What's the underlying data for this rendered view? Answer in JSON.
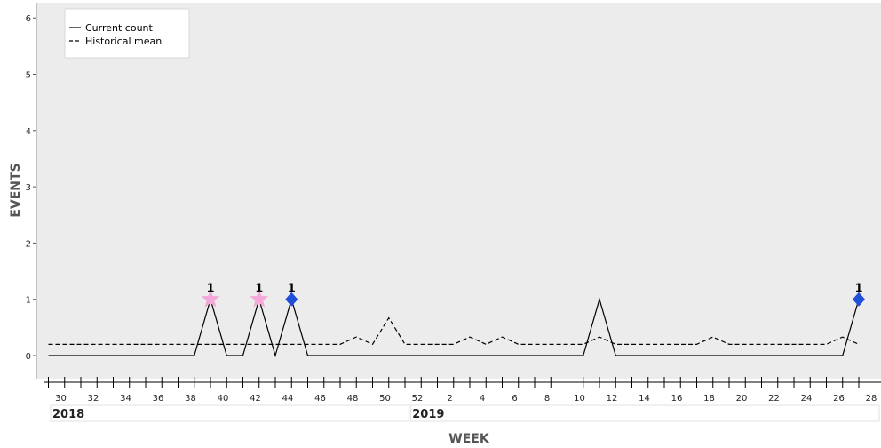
{
  "chart_data": {
    "type": "line",
    "xlabel": "WEEK",
    "ylabel": "EVENTS",
    "ylim": [
      0,
      6
    ],
    "yticks": [
      "0",
      "1",
      "2",
      "3",
      "4",
      "5",
      "6"
    ],
    "grid": false,
    "legend_position": "top-left",
    "colors": {
      "background": "#ececec",
      "line": "#000000",
      "star_marker": "#f4a8d9",
      "diamond_marker": "#1f4fd6"
    },
    "x": [
      "2018-W30",
      "2018-W31",
      "2018-W32",
      "2018-W33",
      "2018-W34",
      "2018-W35",
      "2018-W36",
      "2018-W37",
      "2018-W38",
      "2018-W39",
      "2018-W40",
      "2018-W41",
      "2018-W42",
      "2018-W43",
      "2018-W44",
      "2018-W45",
      "2018-W46",
      "2018-W47",
      "2018-W48",
      "2018-W49",
      "2018-W50",
      "2018-W51",
      "2018-W52",
      "2019-W01",
      "2019-W02",
      "2019-W03",
      "2019-W04",
      "2019-W05",
      "2019-W06",
      "2019-W07",
      "2019-W08",
      "2019-W09",
      "2019-W10",
      "2019-W11",
      "2019-W12",
      "2019-W13",
      "2019-W14",
      "2019-W15",
      "2019-W16",
      "2019-W17",
      "2019-W18",
      "2019-W19",
      "2019-W20",
      "2019-W21",
      "2019-W22",
      "2019-W23",
      "2019-W24",
      "2019-W25",
      "2019-W26",
      "2019-W27",
      "2019-W28"
    ],
    "xticks": [
      {
        "week": "2018-W30",
        "label": "30"
      },
      {
        "week": "2018-W32",
        "label": "32"
      },
      {
        "week": "2018-W34",
        "label": "34"
      },
      {
        "week": "2018-W36",
        "label": "36"
      },
      {
        "week": "2018-W38",
        "label": "38"
      },
      {
        "week": "2018-W40",
        "label": "40"
      },
      {
        "week": "2018-W42",
        "label": "42"
      },
      {
        "week": "2018-W44",
        "label": "44"
      },
      {
        "week": "2018-W46",
        "label": "46"
      },
      {
        "week": "2018-W48",
        "label": "48"
      },
      {
        "week": "2018-W50",
        "label": "50"
      },
      {
        "week": "2018-W52",
        "label": "52"
      },
      {
        "week": "2019-W02",
        "label": "2"
      },
      {
        "week": "2019-W04",
        "label": "4"
      },
      {
        "week": "2019-W06",
        "label": "6"
      },
      {
        "week": "2019-W08",
        "label": "8"
      },
      {
        "week": "2019-W10",
        "label": "10"
      },
      {
        "week": "2019-W12",
        "label": "12"
      },
      {
        "week": "2019-W14",
        "label": "14"
      },
      {
        "week": "2019-W16",
        "label": "16"
      },
      {
        "week": "2019-W18",
        "label": "18"
      },
      {
        "week": "2019-W20",
        "label": "20"
      },
      {
        "week": "2019-W22",
        "label": "22"
      },
      {
        "week": "2019-W24",
        "label": "24"
      },
      {
        "week": "2019-W26",
        "label": "26"
      },
      {
        "week": "2019-W28",
        "label": "28"
      }
    ],
    "years": [
      {
        "label": "2018",
        "start_week": "2018-W30"
      },
      {
        "label": "2019",
        "start_week": "2019-W01"
      }
    ],
    "series": [
      {
        "name": "Current count",
        "style": "solid",
        "values": [
          0,
          0,
          0,
          0,
          0,
          0,
          0,
          0,
          0,
          0,
          1,
          0,
          0,
          1,
          0,
          1,
          0,
          0,
          0,
          0,
          0,
          0,
          0,
          0,
          0,
          0,
          0,
          0,
          0,
          0,
          0,
          0,
          0,
          0,
          1,
          0,
          0,
          0,
          0,
          0,
          0,
          0,
          0,
          0,
          0,
          0,
          0,
          0,
          0,
          0,
          1
        ]
      },
      {
        "name": "Historical mean",
        "style": "dashed",
        "values": [
          0.2,
          0.2,
          0.2,
          0.2,
          0.2,
          0.2,
          0.2,
          0.2,
          0.2,
          0.2,
          0.2,
          0.2,
          0.2,
          0.2,
          0.2,
          0.2,
          0.2,
          0.2,
          0.2,
          0.33,
          0.2,
          0.67,
          0.2,
          0.2,
          0.2,
          0.2,
          0.33,
          0.2,
          0.33,
          0.2,
          0.2,
          0.2,
          0.2,
          0.2,
          0.33,
          0.2,
          0.2,
          0.2,
          0.2,
          0.2,
          0.2,
          0.33,
          0.2,
          0.2,
          0.2,
          0.2,
          0.2,
          0.2,
          0.2,
          0.33,
          0.2
        ]
      }
    ],
    "markers": [
      {
        "week": "2018-W40",
        "value": 1,
        "shape": "star",
        "label": "1"
      },
      {
        "week": "2018-W43",
        "value": 1,
        "shape": "star",
        "label": "1"
      },
      {
        "week": "2018-W45",
        "value": 1,
        "shape": "diamond",
        "label": "1"
      },
      {
        "week": "2019-W28",
        "value": 1,
        "shape": "diamond",
        "label": "1"
      }
    ]
  }
}
